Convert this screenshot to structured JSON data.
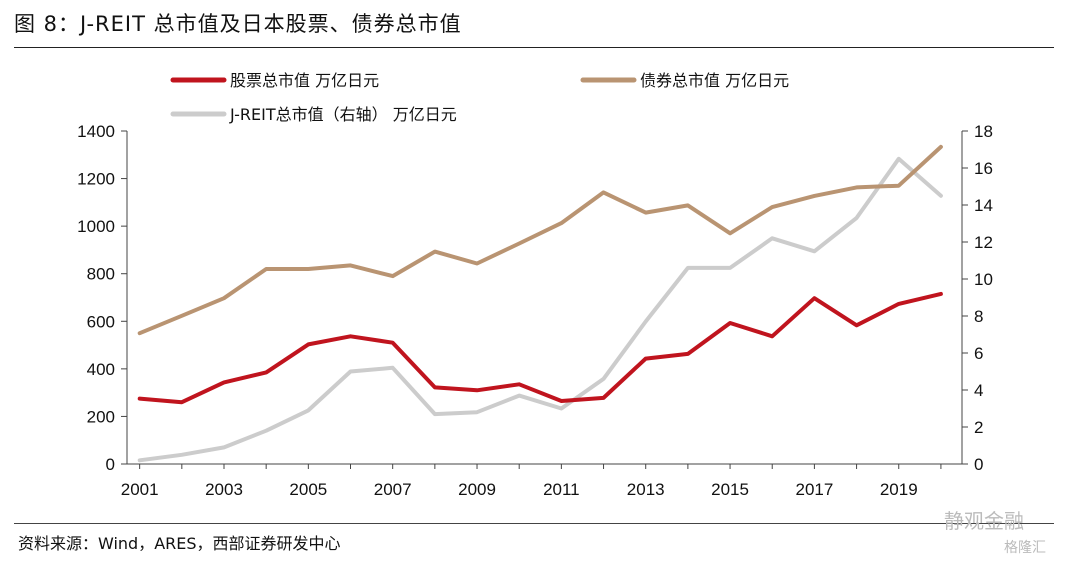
{
  "figure_title": "图 8：J-REIT 总市值及日本股票、债券总市值",
  "source": "资料来源：Wind，ARES，西部证券研发中心",
  "watermark": {
    "line1": "静观金融",
    "line2": "格隆汇"
  },
  "colors": {
    "stock": "#c0141e",
    "bond": "#b99472",
    "reit": "#cccccc",
    "axis": "#444444"
  },
  "chart_data": {
    "type": "line",
    "title": "",
    "xlabel": "",
    "ylabel_left": "",
    "ylabel_right": "",
    "x": [
      2001,
      2002,
      2003,
      2004,
      2005,
      2006,
      2007,
      2008,
      2009,
      2010,
      2011,
      2012,
      2013,
      2014,
      2015,
      2016,
      2017,
      2018,
      2019,
      2020
    ],
    "x_tick_labels": [
      "2001",
      "2003",
      "2005",
      "2007",
      "2009",
      "2011",
      "2013",
      "2015",
      "2017",
      "2019"
    ],
    "y_left": {
      "min": 0,
      "max": 1400,
      "ticks": [
        "0",
        "200",
        "400",
        "600",
        "800",
        "1000",
        "1200",
        "1400"
      ]
    },
    "y_right": {
      "min": 0,
      "max": 18,
      "ticks": [
        "0",
        "2",
        "4",
        "6",
        "8",
        "10",
        "12",
        "14",
        "16",
        "18"
      ]
    },
    "grid": false,
    "legend_position": "top-left",
    "series": [
      {
        "name": "股票总市值 万亿日元",
        "axis": "left",
        "color": "#c0141e",
        "values": [
          275,
          260,
          343,
          385,
          503,
          537,
          510,
          322,
          310,
          335,
          265,
          278,
          443,
          463,
          593,
          537,
          697,
          583,
          673,
          715
        ]
      },
      {
        "name": "债券总市值 万亿日元",
        "axis": "left",
        "color": "#b99472",
        "values": [
          550,
          623,
          697,
          820,
          820,
          835,
          790,
          893,
          843,
          927,
          1013,
          1142,
          1057,
          1087,
          970,
          1080,
          1127,
          1163,
          1170,
          1333
        ]
      },
      {
        "name": "J-REIT总市值（右轴） 万亿日元",
        "axis": "right",
        "color": "#cccccc",
        "values": [
          0.2,
          0.5,
          0.9,
          1.8,
          2.9,
          5.0,
          5.2,
          2.7,
          2.8,
          3.7,
          3.0,
          4.6,
          7.7,
          10.6,
          10.6,
          12.2,
          11.5,
          13.3,
          16.5,
          14.5
        ]
      }
    ]
  }
}
